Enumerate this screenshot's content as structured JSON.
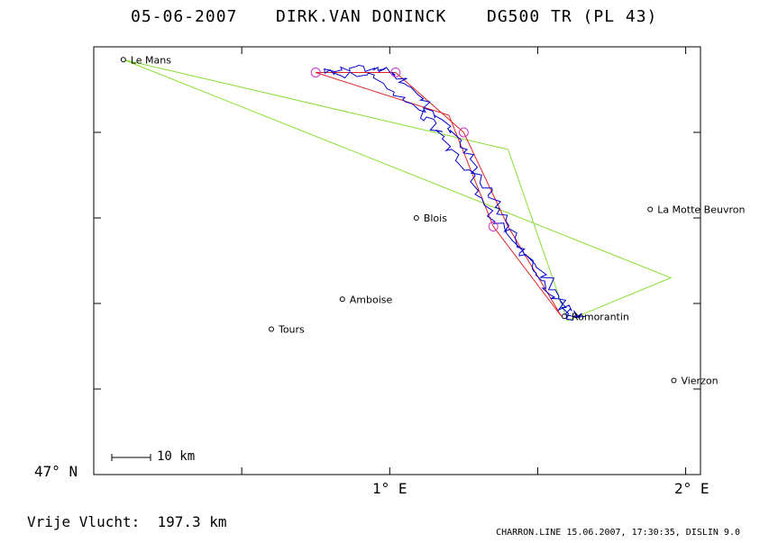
{
  "header": {
    "date": "05-06-2007",
    "pilot": "DIRK.VAN DONINCK",
    "glider": "DG500 TR (PL 43)"
  },
  "axes": {
    "lat_label": "47° N",
    "lon_labels": [
      "1° E",
      "2° E"
    ]
  },
  "colors": {
    "task_line": "#88dd33",
    "optimized_line": "#dd2222",
    "track_line": "#0000cc",
    "turnpoint_marker": "#cc33cc"
  },
  "chart_data": {
    "type": "map",
    "title": "05-06-2007    DIRK.VAN DONINCK    DG500 TR (PL 43)",
    "lon_range": [
      0.0,
      2.05
    ],
    "lat_range": [
      47.0,
      48.0
    ],
    "cities": [
      {
        "name": "Le Mans",
        "lon": 0.1,
        "lat": 47.97
      },
      {
        "name": "Blois",
        "lon": 1.09,
        "lat": 47.6
      },
      {
        "name": "La Motte Beuvron",
        "lon": 1.88,
        "lat": 47.62
      },
      {
        "name": "Amboise",
        "lon": 0.84,
        "lat": 47.41
      },
      {
        "name": "Tours",
        "lon": 0.6,
        "lat": 47.34
      },
      {
        "name": "Romorantin",
        "lon": 1.59,
        "lat": 47.37
      },
      {
        "name": "Vierzon",
        "lon": 1.96,
        "lat": 47.22
      }
    ],
    "task_route": [
      {
        "lon": 1.6,
        "lat": 47.36
      },
      {
        "lon": 1.95,
        "lat": 47.46
      },
      {
        "lon": 0.1,
        "lat": 47.97
      },
      {
        "lon": 1.4,
        "lat": 47.76
      },
      {
        "lon": 1.6,
        "lat": 47.36
      }
    ],
    "optimized_route": [
      {
        "lon": 1.58,
        "lat": 47.37
      },
      {
        "lon": 1.35,
        "lat": 47.58
      },
      {
        "lon": 1.2,
        "lat": 47.84
      },
      {
        "lon": 0.75,
        "lat": 47.94
      },
      {
        "lon": 1.02,
        "lat": 47.94
      },
      {
        "lon": 1.25,
        "lat": 47.8
      },
      {
        "lon": 1.4,
        "lat": 47.58
      },
      {
        "lon": 1.58,
        "lat": 47.37
      }
    ],
    "turnpoints": [
      {
        "lon": 0.75,
        "lat": 47.94
      },
      {
        "lon": 1.02,
        "lat": 47.94
      },
      {
        "lon": 1.25,
        "lat": 47.8
      },
      {
        "lon": 1.35,
        "lat": 47.58
      }
    ],
    "scale_bar_km": 10,
    "free_flight_km": 197.3
  },
  "scale": {
    "label": "10 km"
  },
  "footer": {
    "free_flight_label": "Vrije Vlucht:",
    "free_flight_value": "197.3 km",
    "program_info": "CHARRON.LINE 15.06.2007, 17:30:35, DISLIN 9.0"
  }
}
